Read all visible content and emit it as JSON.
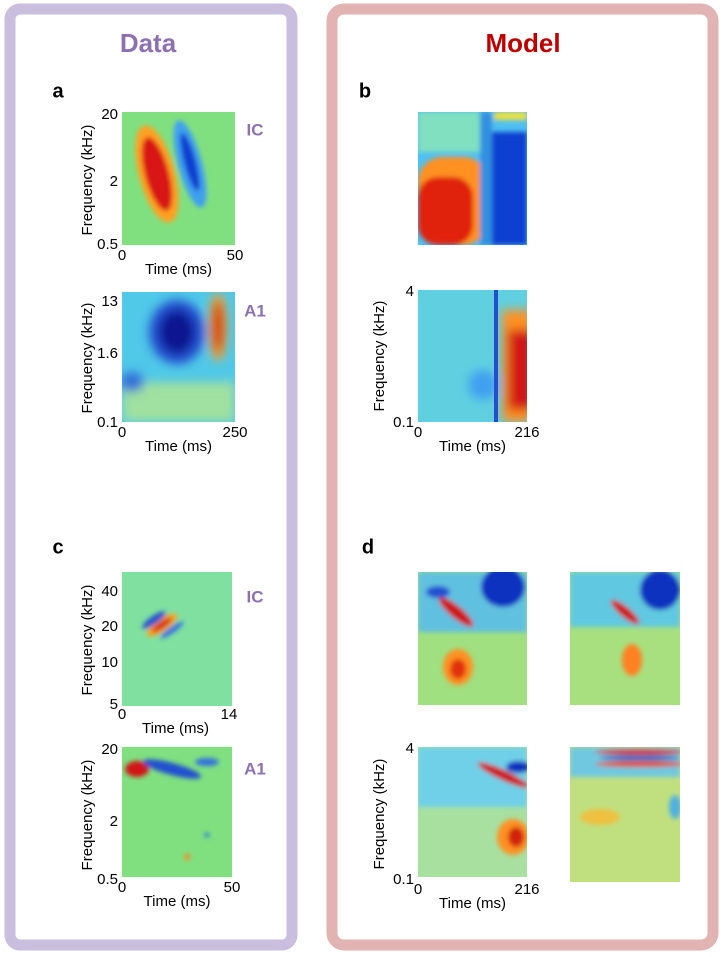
{
  "titles": {
    "data": "Data",
    "model": "Model"
  },
  "panels": [
    {
      "label": "a",
      "plots": [
        {
          "region": "IC",
          "y_label": "Frequency (kHz)",
          "y_ticks": [
            "20",
            "2",
            "0.5"
          ],
          "x_ticks": [
            "0",
            "50"
          ],
          "x_label": "Time (ms)"
        },
        {
          "region": "A1",
          "y_label": "Frequency (kHz)",
          "y_ticks": [
            "13",
            "1.6",
            "0.1"
          ],
          "x_ticks": [
            "0",
            "250"
          ],
          "x_label": "Time (ms)"
        }
      ]
    },
    {
      "label": "b",
      "plots": [
        {
          "y_label": "Frequency (kHz)",
          "y_ticks": [
            "4",
            "0.1"
          ],
          "x_ticks": [
            "0",
            "216"
          ],
          "x_label": "Time (ms)"
        }
      ]
    },
    {
      "label": "c",
      "plots": [
        {
          "region": "IC",
          "y_label": "Frequency (kHz)",
          "y_ticks": [
            "40",
            "20",
            "10",
            "5"
          ],
          "x_ticks": [
            "0",
            "14"
          ],
          "x_label": "Time (ms)"
        },
        {
          "region": "A1",
          "y_label": "Frequency (kHz)",
          "y_ticks": [
            "20",
            "2",
            "0.5"
          ],
          "x_ticks": [
            "0",
            "50"
          ],
          "x_label": "Time (ms)"
        }
      ]
    },
    {
      "label": "d",
      "plots": [
        {
          "y_label": "Frequency (kHz)",
          "y_ticks": [
            "4",
            "0.1"
          ],
          "x_ticks": [
            "0",
            "216"
          ],
          "x_label": "Time (ms)"
        }
      ]
    }
  ]
}
